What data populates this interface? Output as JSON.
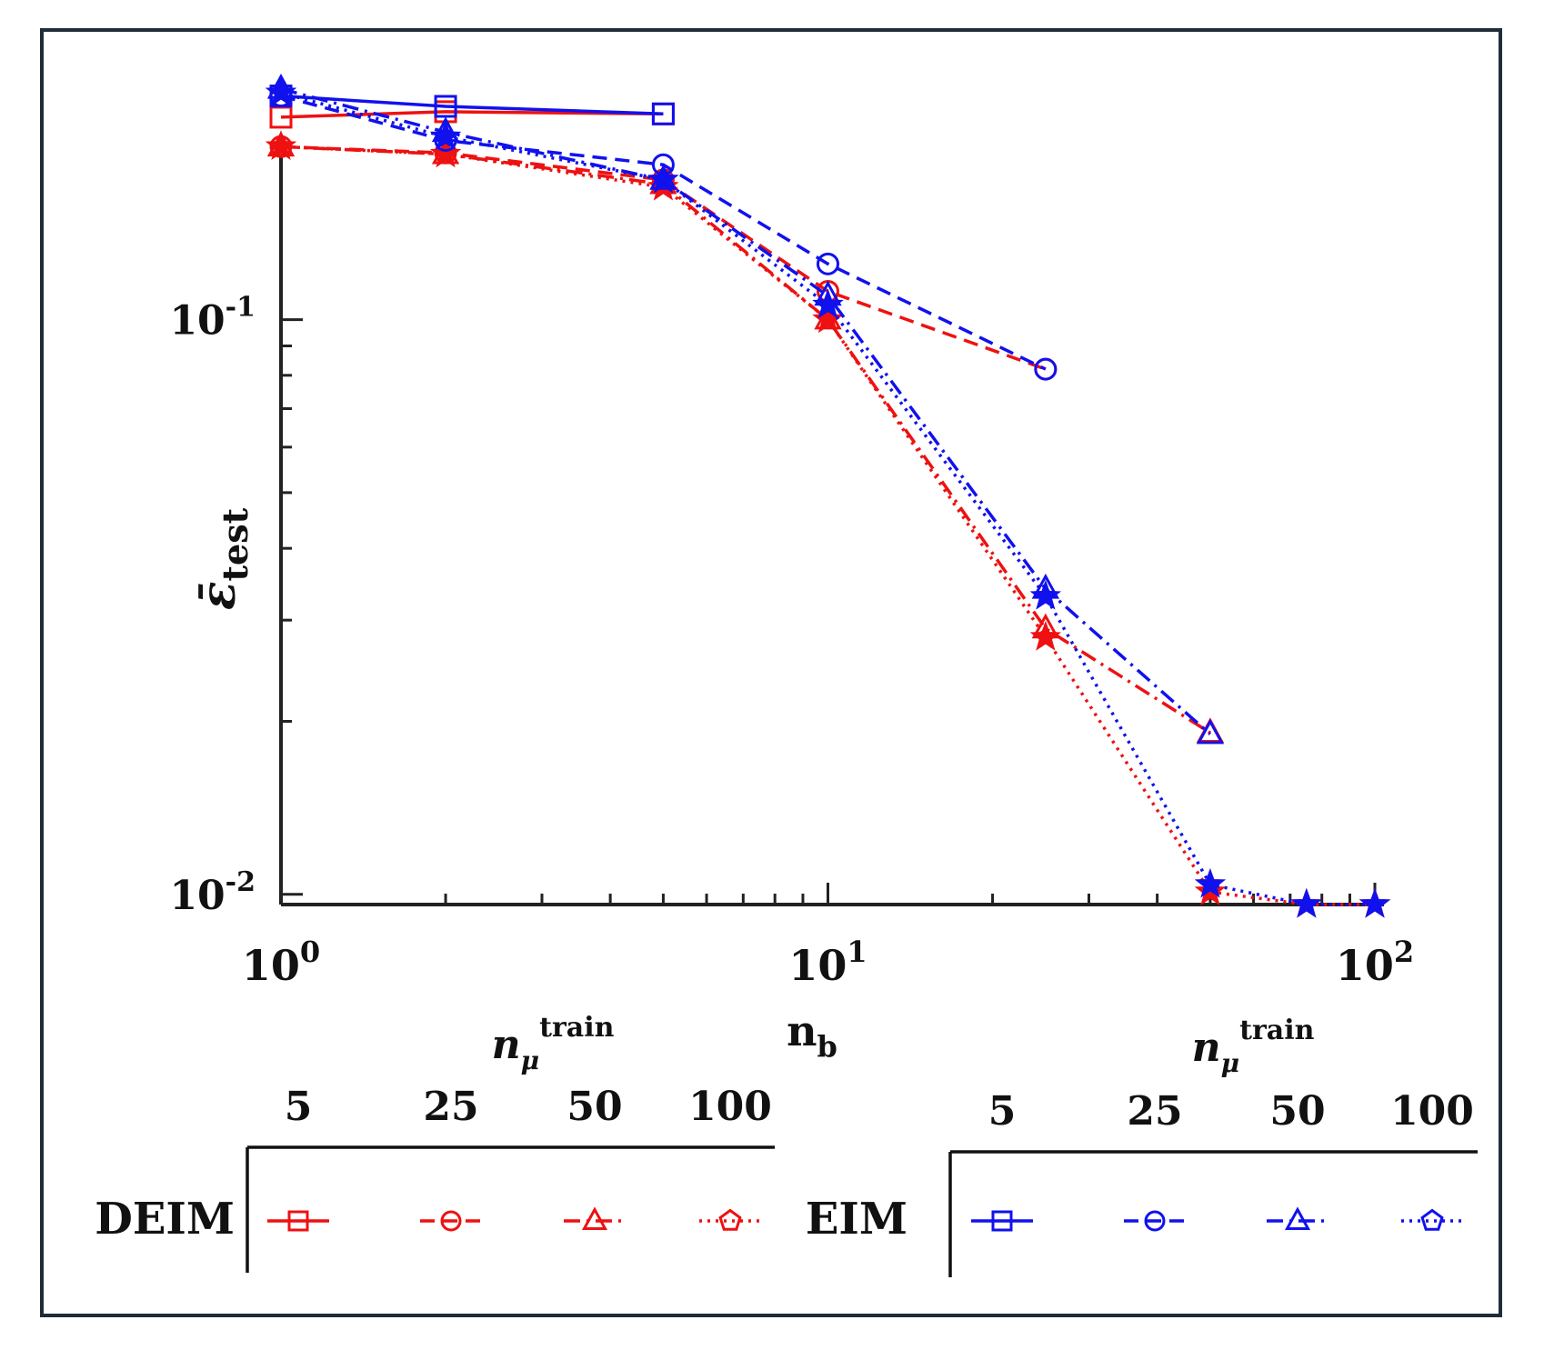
{
  "chart_data": {
    "type": "line",
    "xscale": "log",
    "yscale": "log",
    "xlim": [
      1,
      100
    ],
    "ylim": [
      0.0096,
      0.25
    ],
    "x_ticks": [
      {
        "value": 1,
        "base": "10",
        "exp": "0"
      },
      {
        "value": 10,
        "base": "10",
        "exp": "1"
      },
      {
        "value": 100,
        "base": "10",
        "exp": "2"
      }
    ],
    "y_ticks": [
      {
        "value": 0.1,
        "base": "10",
        "exp": "-1"
      },
      {
        "value": 0.01,
        "base": "10",
        "exp": "-2"
      }
    ],
    "xlabel": {
      "main": "n",
      "sub": "b"
    },
    "ylabel": {
      "main": "ε̄",
      "sub": "test"
    },
    "colors": {
      "DEIM": "#ee1111",
      "EIM": "#1111ee"
    },
    "series": [
      {
        "name": "DEIM 5",
        "method": "DEIM",
        "ntrain": "5",
        "marker": "square",
        "dash": "solid",
        "x": [
          1,
          2,
          5
        ],
        "y": [
          0.225,
          0.23,
          0.228
        ]
      },
      {
        "name": "DEIM 25",
        "method": "DEIM",
        "ntrain": "25",
        "marker": "circle",
        "dash": "dashed",
        "x": [
          1,
          2,
          5,
          10,
          25
        ],
        "y": [
          0.2,
          0.195,
          0.175,
          0.112,
          0.082
        ]
      },
      {
        "name": "DEIM 50",
        "method": "DEIM",
        "ntrain": "50",
        "marker": "triangle",
        "dash": "dashdot",
        "x": [
          1,
          2,
          5,
          10,
          25,
          50
        ],
        "y": [
          0.2,
          0.194,
          0.172,
          0.1,
          0.029,
          0.0191
        ]
      },
      {
        "name": "DEIM 100",
        "method": "DEIM",
        "ntrain": "100",
        "marker": "pentagon",
        "dash": "dotted",
        "x": [
          1,
          2,
          5,
          10,
          25,
          50,
          75,
          100
        ],
        "y": [
          0.2,
          0.194,
          0.17,
          0.1,
          0.028,
          0.0101,
          0.0096,
          0.0096
        ]
      },
      {
        "name": "EIM 5",
        "method": "EIM",
        "ntrain": "5",
        "marker": "square",
        "dash": "solid",
        "x": [
          1,
          2,
          5
        ],
        "y": [
          0.245,
          0.235,
          0.228
        ]
      },
      {
        "name": "EIM 25",
        "method": "EIM",
        "ntrain": "25",
        "marker": "circle",
        "dash": "dashed",
        "x": [
          1,
          2,
          5,
          10,
          25
        ],
        "y": [
          0.245,
          0.205,
          0.186,
          0.125,
          0.082
        ]
      },
      {
        "name": "EIM 50",
        "method": "EIM",
        "ntrain": "50",
        "marker": "triangle",
        "dash": "dashdot",
        "x": [
          1,
          2,
          5,
          10,
          25,
          50
        ],
        "y": [
          0.252,
          0.212,
          0.175,
          0.11,
          0.034,
          0.019
        ]
      },
      {
        "name": "EIM 100",
        "method": "EIM",
        "ntrain": "100",
        "marker": "pentagon",
        "dash": "dotted",
        "x": [
          1,
          2,
          5,
          10,
          25,
          50,
          75,
          100
        ],
        "y": [
          0.248,
          0.208,
          0.175,
          0.106,
          0.033,
          0.0104,
          0.0096,
          0.0096
        ]
      }
    ],
    "legend": {
      "placement": "bottom",
      "header": {
        "main": "n",
        "sub": "μ",
        "sup": "train"
      },
      "columns": [
        "5",
        "25",
        "50",
        "100"
      ],
      "groups": [
        {
          "label": "DEIM",
          "method": "DEIM"
        },
        {
          "label": "EIM",
          "method": "EIM"
        }
      ]
    }
  }
}
